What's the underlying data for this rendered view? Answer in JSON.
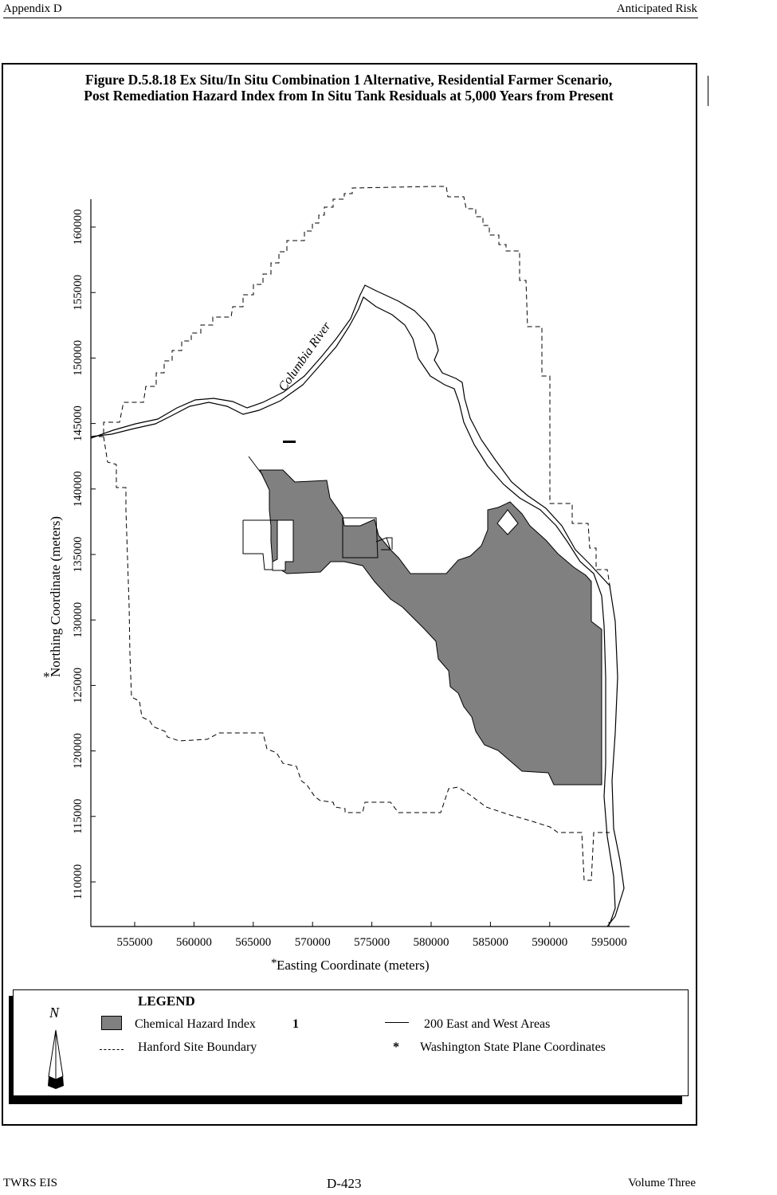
{
  "header": {
    "left": "Appendix D",
    "right": "Anticipated Risk"
  },
  "figure": {
    "title_line1": "Figure D.5.8.18  Ex Situ/In Situ Combination 1 Alternative, Residential Farmer Scenario,",
    "title_line2": "Post Remediation Hazard Index from In Situ Tank Residuals at 5,000 Years from Present"
  },
  "map": {
    "x_axis_label_star": "*",
    "x_axis_label": "Easting Coordinate (meters)",
    "y_axis_label_star": "*",
    "y_axis_label": "Northing Coordinate (meters)",
    "x_ticks": [
      "555000",
      "560000",
      "565000",
      "570000",
      "575000",
      "580000",
      "585000",
      "590000",
      "595000"
    ],
    "y_ticks": [
      "110000",
      "115000",
      "120000",
      "125000",
      "130000",
      "135000",
      "140000",
      "145000",
      "150000",
      "155000",
      "160000"
    ],
    "river_label": "Columbia River",
    "hazard_fill_color": "#808080"
  },
  "legend": {
    "title": "LEGEND",
    "hazard_label": "Chemical Hazard Index",
    "hazard_symbol": "1",
    "areas_label": "200 East and West Areas",
    "boundary_label": "Hanford Site Boundary",
    "coords_star": "*",
    "coords_label": "Washington State Plane Coordinates",
    "north_symbol": "N"
  },
  "footer": {
    "left": "TWRS EIS",
    "center": "D-423",
    "right": "Volume Three"
  }
}
